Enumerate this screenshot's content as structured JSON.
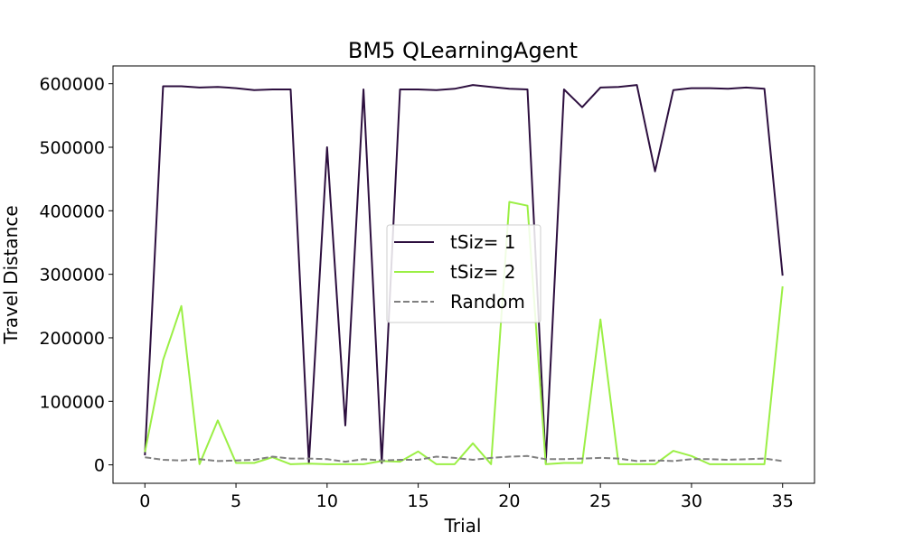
{
  "chart_data": {
    "type": "line",
    "title": "BM5  QLearningAgent",
    "xlabel": "Trial",
    "ylabel": "Travel Distance",
    "xlim": [
      -1.75,
      36.75
    ],
    "ylim": [
      -29000,
      628000
    ],
    "xticks": [
      0,
      5,
      10,
      15,
      20,
      25,
      30,
      35
    ],
    "yticks": [
      0,
      100000,
      200000,
      300000,
      400000,
      500000,
      600000
    ],
    "grid": false,
    "legend_position": "center",
    "x": [
      0,
      1,
      2,
      3,
      4,
      5,
      6,
      7,
      8,
      9,
      10,
      11,
      12,
      13,
      14,
      15,
      16,
      17,
      18,
      19,
      20,
      21,
      22,
      23,
      24,
      25,
      26,
      27,
      28,
      29,
      30,
      31,
      32,
      33,
      34,
      35
    ],
    "series": [
      {
        "name": "tSiz= 1",
        "color": "#2d0f3f",
        "dash": "solid",
        "values": [
          15000,
          596000,
          596000,
          594000,
          595000,
          593000,
          590000,
          591000,
          591000,
          3000,
          500000,
          62000,
          591000,
          3000,
          591000,
          591000,
          590000,
          592000,
          598000,
          595000,
          592000,
          591000,
          3000,
          591000,
          563000,
          594000,
          595000,
          598000,
          462000,
          590000,
          593000,
          593000,
          592000,
          594000,
          592000,
          298000
        ]
      },
      {
        "name": "tSiz= 2",
        "color": "#9bef45",
        "dash": "solid",
        "values": [
          20000,
          165000,
          250000,
          1000,
          70000,
          3000,
          3000,
          12000,
          1000,
          2000,
          1000,
          1000,
          1000,
          6000,
          5000,
          21000,
          1000,
          1000,
          34000,
          1000,
          414000,
          408000,
          1000,
          3000,
          3000,
          229000,
          1000,
          1000,
          1000,
          22000,
          14000,
          1000,
          1000,
          1000,
          1000,
          281000
        ]
      },
      {
        "name": "Random",
        "color": "#808080",
        "dash": "dashed",
        "values": [
          12000,
          8000,
          7000,
          9000,
          6000,
          7000,
          8000,
          13000,
          10000,
          10000,
          9000,
          5000,
          9000,
          7000,
          8000,
          8000,
          13000,
          11000,
          8000,
          11000,
          13000,
          14000,
          9000,
          9000,
          10000,
          11000,
          10000,
          6000,
          7000,
          6000,
          9000,
          9000,
          8000,
          9000,
          10000,
          6000
        ]
      }
    ]
  }
}
